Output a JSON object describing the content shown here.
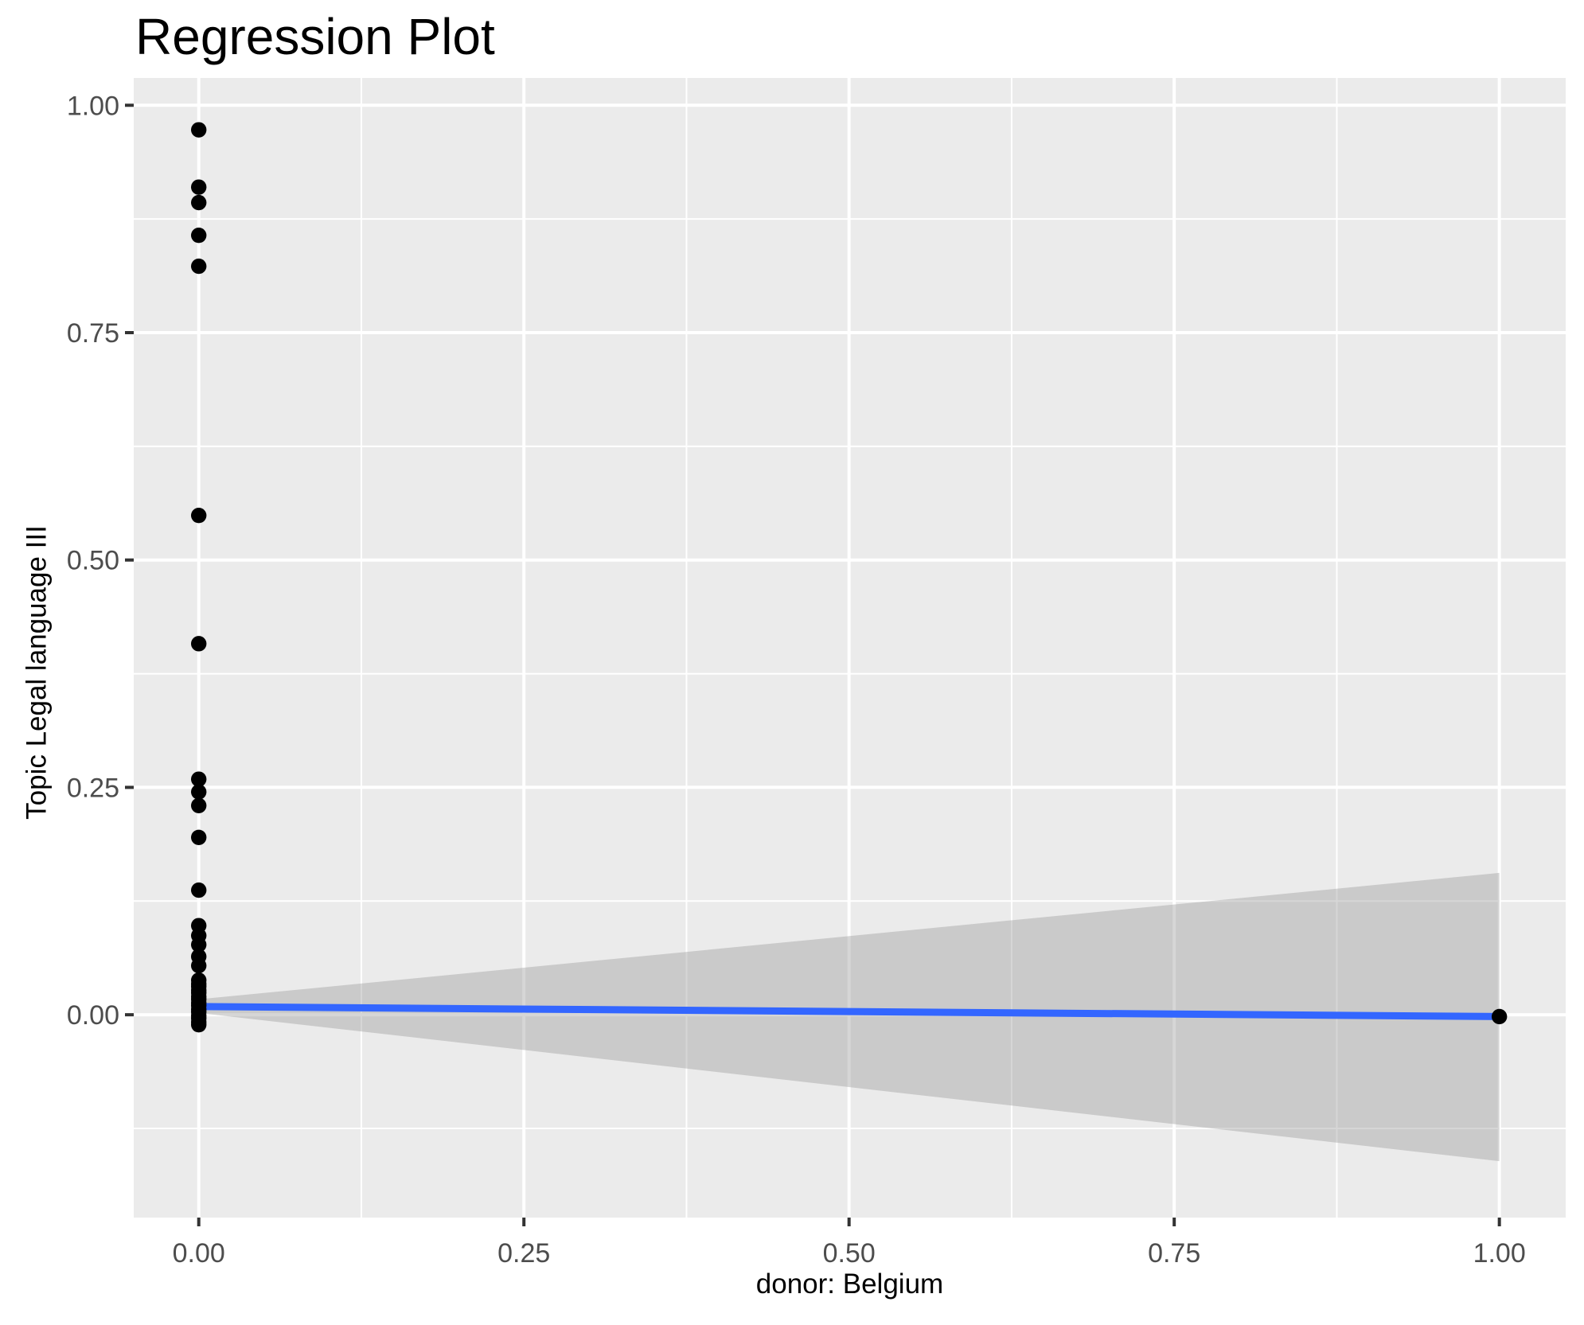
{
  "title": "Regression Plot",
  "colors": {
    "background": "#FFFFFF",
    "panel_background": "#EBEBEB",
    "gridline": "#FFFFFF",
    "tick_mark": "#333333",
    "tick_text": "#4D4D4D",
    "point": "#000000",
    "regression_line": "#3366FF",
    "confidence_band": "#999999"
  },
  "chart_data": {
    "type": "scatter",
    "title": "Regression Plot",
    "xlabel": "donor: Belgium",
    "ylabel": "Topic Legal language III",
    "xlim": [
      -0.05,
      1.051
    ],
    "ylim": [
      -0.223,
      1.03
    ],
    "grid": true,
    "legend": "none",
    "x_ticks": {
      "values": [
        0,
        0.25,
        0.5,
        0.75,
        1
      ],
      "labels": [
        "0.00",
        "0.25",
        "0.50",
        "0.75",
        "1.00"
      ]
    },
    "y_ticks": {
      "values": [
        0,
        0.25,
        0.5,
        0.75,
        1
      ],
      "labels": [
        "0.00",
        "0.25",
        "0.50",
        "0.75",
        "1.00"
      ]
    },
    "x_minor": [
      0.125,
      0.375,
      0.625,
      0.875
    ],
    "y_minor": [
      -0.125,
      0.125,
      0.375,
      0.625,
      0.875
    ],
    "points": {
      "x": [
        0,
        0,
        0,
        0,
        0,
        0,
        0,
        0,
        0,
        0,
        0,
        0,
        0,
        0,
        0,
        0,
        0,
        0,
        0,
        0,
        0,
        0,
        0,
        0,
        0,
        0,
        0,
        0,
        0,
        0,
        0,
        0,
        1
      ],
      "y": [
        0.973,
        0.91,
        0.893,
        0.857,
        0.823,
        0.549,
        0.408,
        0.259,
        0.245,
        0.23,
        0.195,
        0.137,
        0.098,
        0.087,
        0.077,
        0.064,
        0.054,
        0.038,
        0.034,
        0.031,
        0.027,
        0.024,
        0.02,
        0.017,
        0.013,
        0.01,
        0.006,
        0.003,
        -0.001,
        -0.004,
        -0.008,
        -0.011,
        -0.002
      ]
    },
    "regression_line": {
      "x": [
        0,
        1
      ],
      "y": [
        0.009,
        -0.002
      ],
      "color": "#3366FF",
      "width": 9
    },
    "confidence_band": {
      "x": [
        0,
        1
      ],
      "upper": [
        0.017,
        0.156
      ],
      "lower": [
        0.002,
        -0.161
      ],
      "fill": "#999999",
      "opacity": 0.4
    }
  }
}
